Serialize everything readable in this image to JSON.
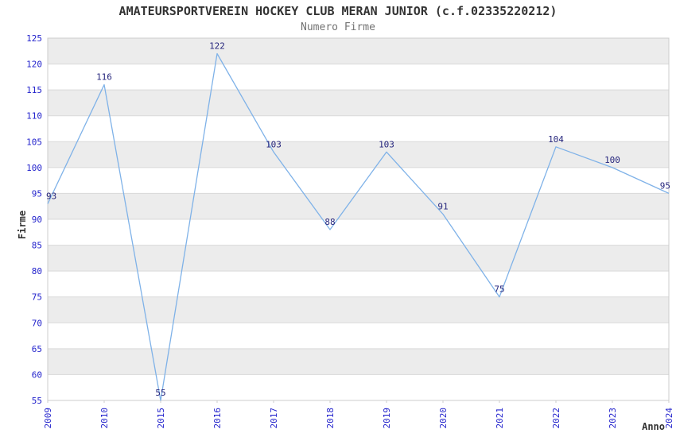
{
  "chart_data": {
    "type": "line",
    "title": "AMATEURSPORTVEREIN HOCKEY CLUB MERAN JUNIOR (c.f.02335220212)",
    "subtitle": "Numero Firme",
    "xlabel": "Anno",
    "ylabel": "Firme",
    "categories": [
      "2009",
      "2010",
      "2015",
      "2016",
      "2017",
      "2018",
      "2019",
      "2020",
      "2021",
      "2022",
      "2023",
      "2024"
    ],
    "values": [
      93,
      116,
      55,
      122,
      103,
      88,
      103,
      91,
      75,
      104,
      100,
      95
    ],
    "ylim": [
      55,
      125
    ],
    "ytick_step": 5,
    "yticks": [
      55,
      60,
      65,
      70,
      75,
      80,
      85,
      90,
      95,
      100,
      105,
      110,
      115,
      120,
      125
    ],
    "grid": true,
    "legend": false,
    "banded_background": true,
    "x_tick_rotation": 90,
    "colors": {
      "line": "#7fb2e8",
      "tick_labels": "#2222cc",
      "data_labels": "#26267d",
      "band": "#ececec",
      "gridline": "#d9d9d9",
      "border": "#cccccc",
      "title": "#333333",
      "subtitle": "#737373",
      "axis_titles": "#333333",
      "background": "#ffffff"
    }
  }
}
